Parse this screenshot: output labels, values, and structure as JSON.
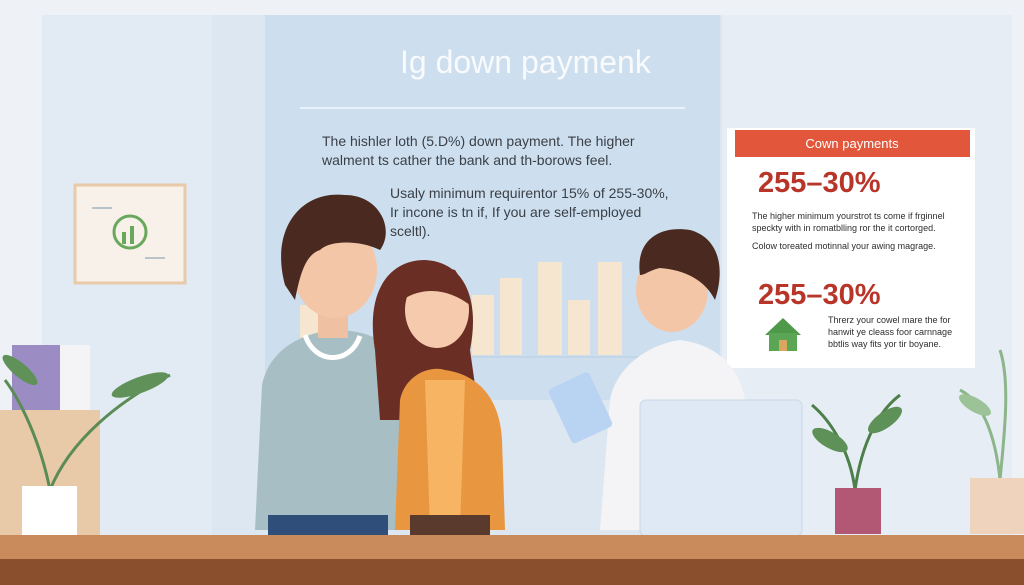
{
  "poster": {
    "title": "Ig down paymenk",
    "paragraphs": [
      [
        "The hishler loth (5.D%) down payment. The higher",
        "walment ts cather the bank and th-borows feel."
      ],
      [
        "Usaly minimum requirentor 15% of 255-30%,",
        "Ir incone is tn if, If you are self-employed",
        "sceltl)."
      ]
    ]
  },
  "card": {
    "header": "Cown payments",
    "figure_1": "255–30%",
    "text_1": [
      "The higher minimum yourstrot ts come if frginnel",
      "speckty with in romatblling ror the it cortorged."
    ],
    "text_2": "Colow toreated motinnal your awing magrage.",
    "figure_2": "255–30%",
    "text_3": [
      "Threrz your cowel mare the for",
      "hanwit ye cleass foor carnnage",
      "bbtlis way fits yor tir boyane."
    ]
  }
}
